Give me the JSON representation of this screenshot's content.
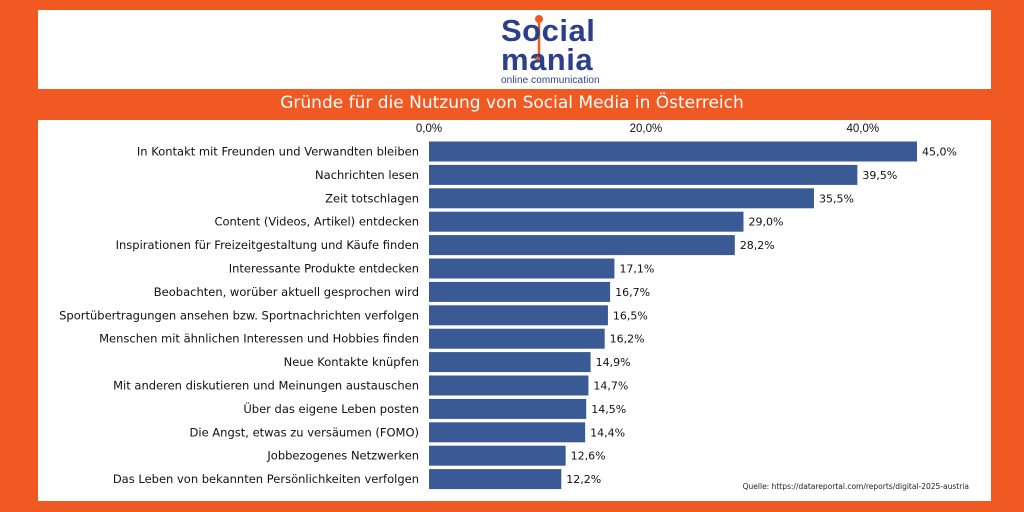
{
  "header": {
    "logo_word1": "Social",
    "logo_word2": "mania",
    "logo_tagline": "online communication"
  },
  "colors": {
    "background": "#f05a22",
    "bar": "#3a5a95",
    "brand_blue": "#2b3f8c",
    "brand_orange": "#f05a22"
  },
  "source": "Quelle: https://datareportal.com/reports/digital-2025-austria",
  "chart_data": {
    "type": "bar",
    "orientation": "horizontal",
    "title": "Gründe für die Nutzung von Social Media in Österreich",
    "xlabel": "",
    "ylabel": "",
    "xlim": [
      0,
      45
    ],
    "ticks": [
      0,
      20,
      40
    ],
    "tick_labels": [
      "0,0%",
      "20,0%",
      "40,0%"
    ],
    "legend": "none",
    "categories": [
      "In Kontakt mit Freunden und Verwandten bleiben",
      "Nachrichten lesen",
      "Zeit totschlagen",
      "Content (Videos, Artikel) entdecken",
      "Inspirationen für Freizeitgestaltung und Käufe finden",
      "Interessante Produkte entdecken",
      "Beobachten, worüber aktuell gesprochen wird",
      "Sportübertragungen ansehen bzw. Sportnachrichten verfolgen",
      "Menschen mit ähnlichen Interessen und Hobbies finden",
      "Neue Kontakte knüpfen",
      "Mit anderen diskutieren und Meinungen austauschen",
      "Über das eigene Leben posten",
      "Die Angst, etwas zu versäumen (FOMO)",
      "Jobbezogenes Netzwerken",
      "Das Leben von bekannten Persönlichkeiten verfolgen"
    ],
    "values": [
      45.0,
      39.5,
      35.5,
      29.0,
      28.2,
      17.1,
      16.7,
      16.5,
      16.2,
      14.9,
      14.7,
      14.5,
      14.4,
      12.6,
      12.2
    ],
    "value_labels": [
      "45,0%",
      "39,5%",
      "35,5%",
      "29,0%",
      "28,2%",
      "17,1%",
      "16,7%",
      "16,5%",
      "16,2%",
      "14,9%",
      "14,7%",
      "14,5%",
      "14,4%",
      "12,6%",
      "12,2%"
    ]
  }
}
